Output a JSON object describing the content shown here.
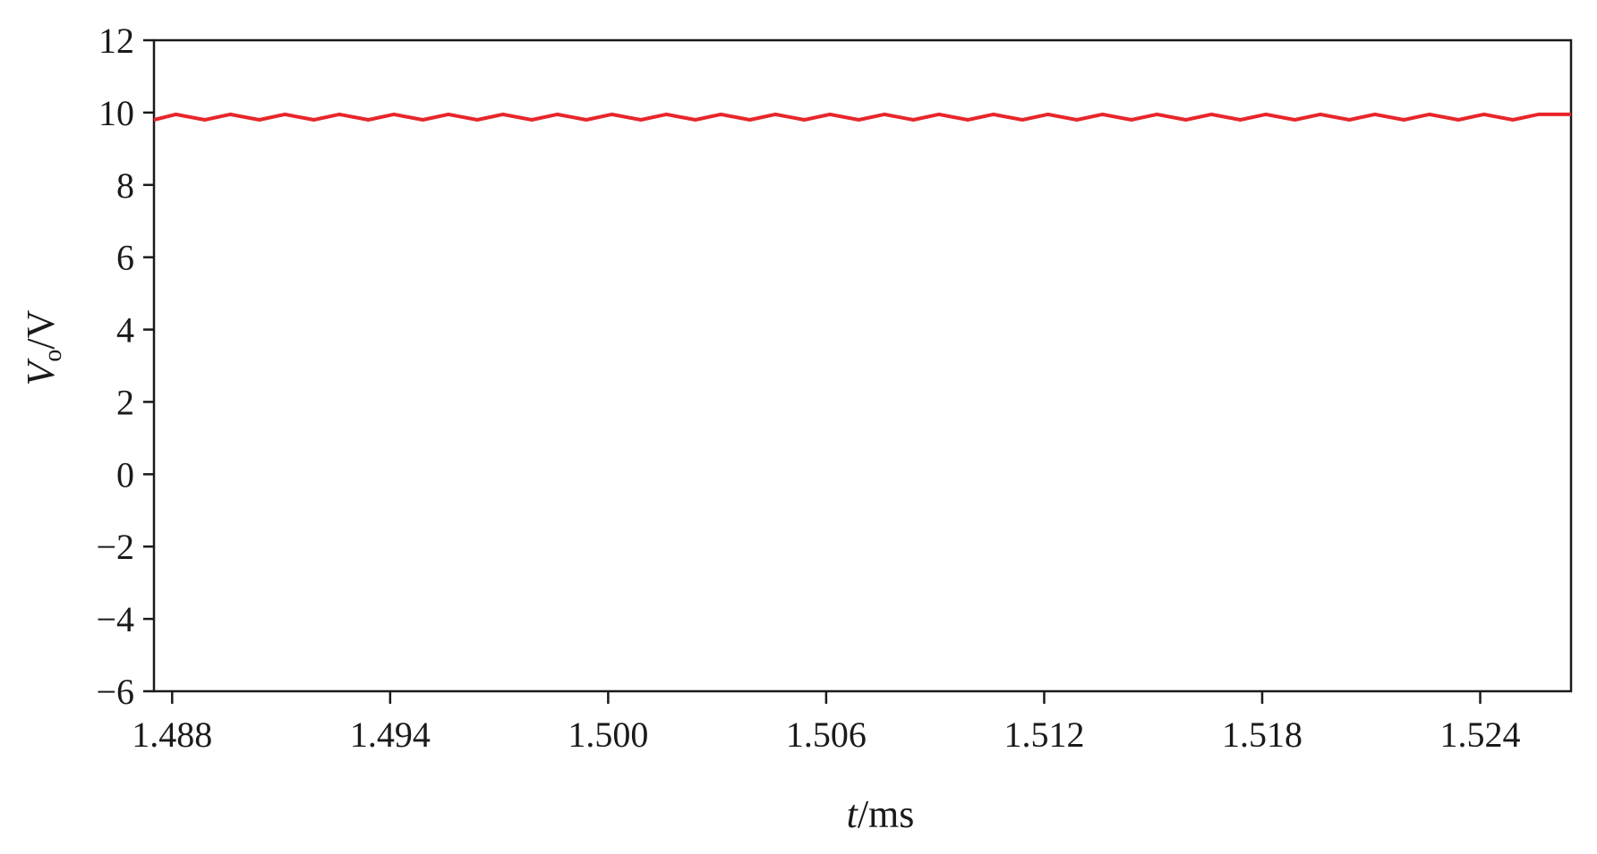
{
  "chart_data": {
    "type": "line",
    "title": "",
    "xlabel": {
      "var": "t",
      "unit": "/ms"
    },
    "ylabel": {
      "var": "V",
      "sub": "o",
      "unit": "/V"
    },
    "xlim": [
      1.4875,
      1.5265
    ],
    "ylim": [
      -6,
      12
    ],
    "xticks": [
      1.488,
      1.494,
      1.5,
      1.506,
      1.512,
      1.518,
      1.524
    ],
    "xtick_labels": [
      "1.488",
      "1.494",
      "1.500",
      "1.506",
      "1.512",
      "1.518",
      "1.524"
    ],
    "yticks": [
      12,
      10,
      8,
      6,
      4,
      2,
      0,
      -2,
      -4,
      -6
    ],
    "ytick_labels": [
      "12",
      "10",
      "8",
      "6",
      "4",
      "2",
      "0",
      "−2",
      "−4",
      "−6"
    ],
    "grid": false,
    "series": [
      {
        "color": "#e8262a",
        "x": [
          1.4875,
          1.4881,
          1.4889,
          1.4896,
          1.4904,
          1.4911,
          1.4919,
          1.4926,
          1.4934,
          1.4941,
          1.4949,
          1.4956,
          1.4964,
          1.4971,
          1.4979,
          1.4986,
          1.4994,
          1.5001,
          1.5009,
          1.5016,
          1.5024,
          1.5031,
          1.5039,
          1.5046,
          1.5054,
          1.5061,
          1.5069,
          1.5076,
          1.5084,
          1.5091,
          1.5099,
          1.5106,
          1.5114,
          1.5121,
          1.5129,
          1.5136,
          1.5144,
          1.5151,
          1.5159,
          1.5166,
          1.5174,
          1.5181,
          1.5189,
          1.5196,
          1.5204,
          1.5211,
          1.5219,
          1.5226,
          1.5234,
          1.5241,
          1.5249,
          1.5256,
          1.5265
        ],
        "y": [
          9.8,
          9.95,
          9.8,
          9.95,
          9.8,
          9.95,
          9.8,
          9.95,
          9.8,
          9.95,
          9.8,
          9.95,
          9.8,
          9.95,
          9.8,
          9.95,
          9.8,
          9.95,
          9.8,
          9.95,
          9.8,
          9.95,
          9.8,
          9.95,
          9.8,
          9.95,
          9.8,
          9.95,
          9.8,
          9.95,
          9.8,
          9.95,
          9.8,
          9.95,
          9.8,
          9.95,
          9.8,
          9.95,
          9.8,
          9.95,
          9.8,
          9.95,
          9.8,
          9.95,
          9.8,
          9.95,
          9.8,
          9.95,
          9.8,
          9.95,
          9.8,
          9.95,
          9.95
        ]
      }
    ]
  }
}
